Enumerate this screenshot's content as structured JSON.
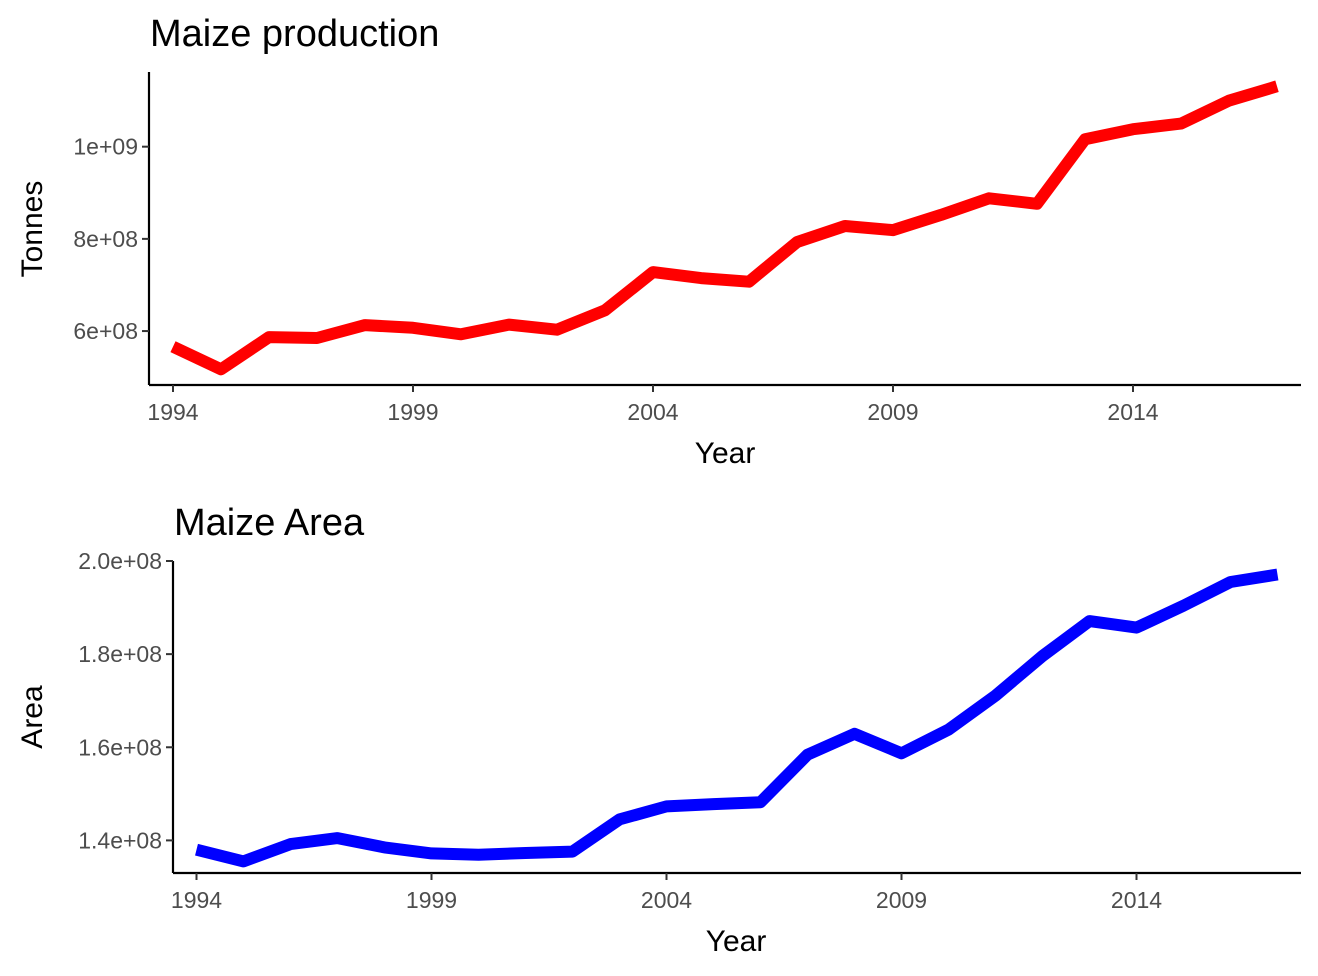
{
  "chart_data": [
    {
      "type": "line",
      "title": "Maize production",
      "xlabel": "Year",
      "ylabel": "Tonnes",
      "xlim": [
        1993.5,
        2017.5
      ],
      "ylim": [
        483000000,
        1162000000
      ],
      "x_ticks": [
        1994,
        1999,
        2004,
        2009,
        2014
      ],
      "x_tick_labels": [
        "1994",
        "1999",
        "2004",
        "2009",
        "2014"
      ],
      "y_ticks": [
        600000000,
        800000000,
        1000000000
      ],
      "y_tick_labels": [
        "6e+08",
        "8e+08",
        "1e+09"
      ],
      "grid": false,
      "color": "#ff0000",
      "series": [
        {
          "x": [
            1994,
            1995,
            1996,
            1997,
            1998,
            1999,
            2000,
            2001,
            2002,
            2003,
            2004,
            2005,
            2006,
            2007,
            2008,
            2009,
            2010,
            2011,
            2012,
            2013,
            2014,
            2015,
            2016,
            2017
          ],
          "values": [
            566000000,
            517000000,
            587000000,
            585000000,
            613000000,
            607000000,
            593000000,
            614000000,
            603000000,
            645000000,
            728000000,
            715000000,
            707000000,
            793000000,
            828000000,
            819000000,
            852000000,
            888000000,
            876000000,
            1016000000,
            1038000000,
            1050000000,
            1100000000,
            1131000000
          ]
        }
      ]
    },
    {
      "type": "line",
      "title": "Maize Area",
      "xlabel": "Year",
      "ylabel": "Area",
      "xlim": [
        1993.5,
        2017.5
      ],
      "ylim": [
        133000000,
        200000000
      ],
      "x_ticks": [
        1994,
        1999,
        2004,
        2009,
        2014
      ],
      "x_tick_labels": [
        "1994",
        "1999",
        "2004",
        "2009",
        "2014"
      ],
      "y_ticks": [
        140000000,
        160000000,
        180000000,
        200000000
      ],
      "y_tick_labels": [
        "1.4e+08",
        "1.6e+08",
        "1.8e+08",
        "2.0e+08"
      ],
      "grid": false,
      "color": "#0000ff",
      "series": [
        {
          "x": [
            1994,
            1995,
            1996,
            1997,
            1998,
            1999,
            2000,
            2001,
            2002,
            2003,
            2004,
            2005,
            2006,
            2007,
            2008,
            2009,
            2010,
            2011,
            2012,
            2013,
            2014,
            2015,
            2016,
            2017
          ],
          "values": [
            138000000,
            135500000,
            139200000,
            140500000,
            138500000,
            137200000,
            136900000,
            137300000,
            137600000,
            144500000,
            147300000,
            147800000,
            148200000,
            158400000,
            162900000,
            158700000,
            163800000,
            171100000,
            179600000,
            187100000,
            185700000,
            190400000,
            195500000,
            197100000
          ]
        }
      ]
    }
  ]
}
